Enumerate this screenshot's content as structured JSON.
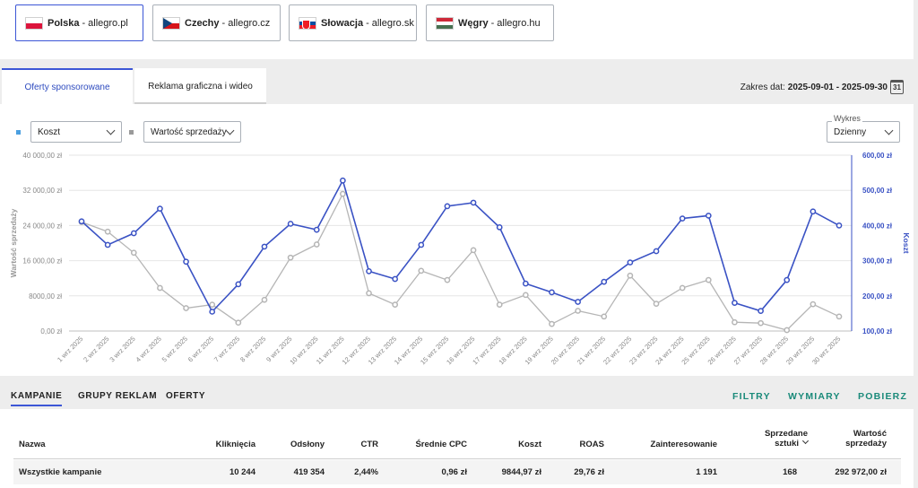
{
  "marketplaces": [
    {
      "country": "Polska",
      "domain": "allegro.pl",
      "flag": "flag-pl",
      "active": true
    },
    {
      "country": "Czechy",
      "domain": "allegro.cz",
      "flag": "flag-cz",
      "active": false
    },
    {
      "country": "Słowacja",
      "domain": "allegro.sk",
      "flag": "flag-sk",
      "active": false
    },
    {
      "country": "Węgry",
      "domain": "allegro.hu",
      "flag": "flag-hu",
      "active": false
    }
  ],
  "tabs": [
    {
      "label": "Oferty sponsorowane",
      "active": true
    },
    {
      "label": "Reklama graficzna i wideo",
      "active": false
    }
  ],
  "date_range": {
    "label": "Zakres dat:",
    "value": "2025-09-01 - 2025-09-30",
    "calendar_day": "31"
  },
  "chart_controls": {
    "metric_left": "Koszt",
    "metric_left_color": "#4a9fe0",
    "metric_right": "Wartość sprzedaży",
    "metric_right_color": "#9a9a9a",
    "granularity_label": "Wykres",
    "granularity": "Dzienny"
  },
  "chart_data": {
    "type": "line",
    "x": [
      "1 wrz 2025",
      "2 wrz 2025",
      "3 wrz 2025",
      "4 wrz 2025",
      "5 wrz 2025",
      "6 wrz 2025",
      "7 wrz 2025",
      "8 wrz 2025",
      "9 wrz 2025",
      "10 wrz 2025",
      "11 wrz 2025",
      "12 wrz 2025",
      "13 wrz 2025",
      "14 wrz 2025",
      "15 wrz 2025",
      "16 wrz 2025",
      "17 wrz 2025",
      "18 wrz 2025",
      "19 wrz 2025",
      "20 wrz 2025",
      "21 wrz 2025",
      "22 wrz 2025",
      "23 wrz 2025",
      "24 wrz 2025",
      "25 wrz 2025",
      "26 wrz 2025",
      "27 wrz 2025",
      "28 wrz 2025",
      "29 wrz 2025",
      "30 wrz 2025"
    ],
    "left_axis": {
      "label": "Wartość sprzedaży",
      "ticks": [
        "0,00 zł",
        "8000,00 zł",
        "16 000,00 zł",
        "24 000,00 zł",
        "32 000,00 zł",
        "40 000,00 zł"
      ],
      "range": [
        0,
        40000
      ]
    },
    "right_axis": {
      "label": "Koszt",
      "ticks": [
        "100,00 zł",
        "200,00 zł",
        "300,00 zł",
        "400,00 zł",
        "500,00 zł",
        "600,00 zł"
      ],
      "range": [
        100,
        600
      ]
    },
    "series": [
      {
        "name": "Koszt",
        "axis": "right",
        "color": "#3a52c4",
        "values": [
          412,
          345,
          378,
          448,
          297,
          155,
          233,
          340,
          405,
          388,
          528,
          270,
          248,
          345,
          455,
          465,
          395,
          235,
          210,
          183,
          240,
          295,
          327,
          420,
          428,
          180,
          157,
          245,
          440,
          400
        ]
      },
      {
        "name": "Wartość sprzedaży",
        "axis": "left",
        "color": "#b5b5b5",
        "values": [
          24800,
          22600,
          17800,
          9800,
          5200,
          6000,
          1900,
          7100,
          16700,
          19700,
          31200,
          8600,
          6000,
          13700,
          11600,
          18400,
          6000,
          8200,
          1600,
          4600,
          3300,
          12600,
          6200,
          9800,
          11600,
          2000,
          1800,
          200,
          6100,
          3300
        ]
      }
    ],
    "grid": true
  },
  "table_tabs": [
    {
      "label": "KAMPANIE",
      "active": true
    },
    {
      "label": "GRUPY REKLAM",
      "active": false
    },
    {
      "label": "OFERTY",
      "active": false
    }
  ],
  "actions": {
    "filters": "FILTRY",
    "dimensions": "WYMIARY",
    "download": "POBIERZ"
  },
  "table": {
    "headers": [
      "Nazwa",
      "Kliknięcia",
      "Odsłony",
      "CTR",
      "Średnie CPC",
      "Koszt",
      "ROAS",
      "Zainteresowanie",
      "Sprzedane sztuki",
      "Wartość sprzedaży"
    ],
    "rows": [
      [
        "Wszystkie kampanie",
        "10 244",
        "419 354",
        "2,44%",
        "0,96 zł",
        "9844,97 zł",
        "29,76 zł",
        "1 191",
        "168",
        "292 972,00 zł"
      ]
    ]
  }
}
